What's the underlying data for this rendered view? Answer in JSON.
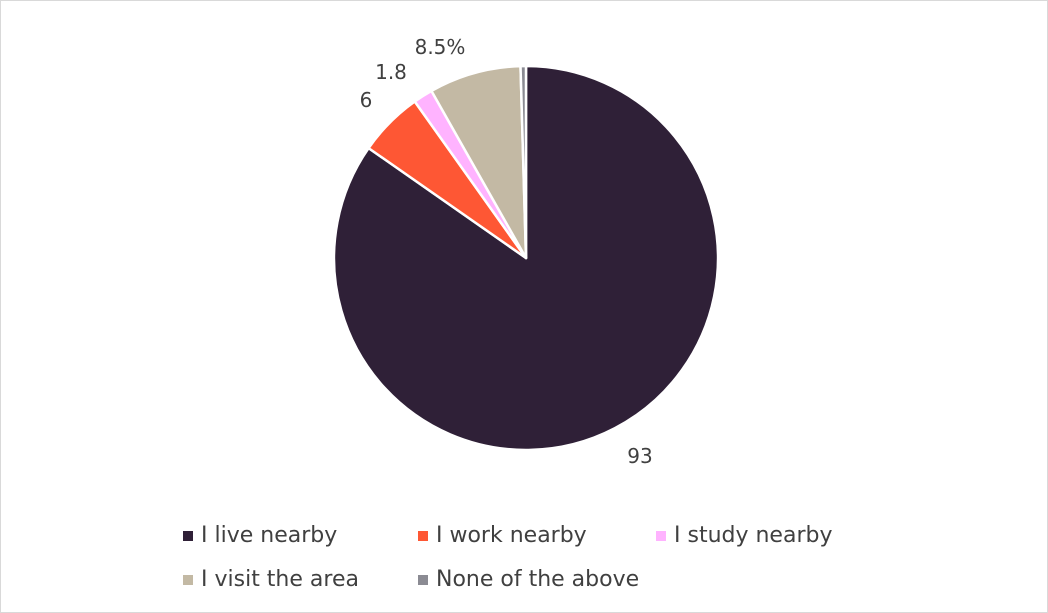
{
  "chart_data": {
    "type": "pie",
    "title": "",
    "categories": [
      "I live nearby",
      "I work nearby",
      "I study nearby",
      "I visit the area",
      "None of the above"
    ],
    "values": [
      93,
      6,
      1.8,
      8.5,
      0.5
    ],
    "data_labels": [
      "93",
      "6",
      "1.8",
      "8.5%",
      ""
    ],
    "colors": [
      "#2f2037",
      "#fe5734",
      "#ffb3ff",
      "#c3b9a4",
      "#8b8b93"
    ],
    "legend_position": "bottom"
  }
}
